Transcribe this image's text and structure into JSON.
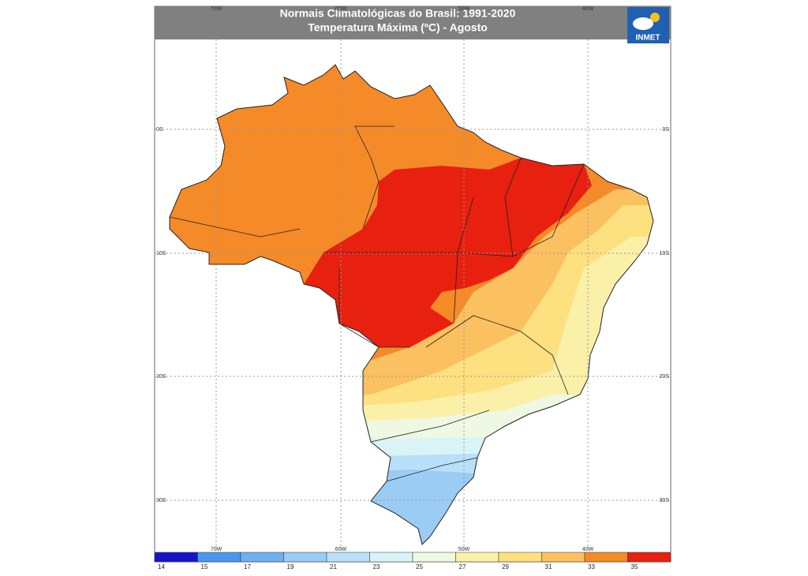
{
  "header": {
    "title": "Normais Climatológicas do Brasil: 1991-2020",
    "subtitle": "Temperatura Máxima (ºC) - Agosto",
    "logo": "INMET"
  },
  "map": {
    "longitude_labels": [
      "70W",
      "60W",
      "50W",
      "40W"
    ],
    "latitude_labels": [
      "0S",
      "10S",
      "20S",
      "30S"
    ]
  },
  "colorbar": {
    "ticks": [
      14,
      15,
      17,
      19,
      21,
      23,
      25,
      27,
      29,
      31,
      33,
      35
    ],
    "colors": [
      "#1414c8",
      "#4a96ee",
      "#6fb0f0",
      "#9accf4",
      "#b9e0f8",
      "#d9f4f6",
      "#eef8e2",
      "#fbf0a8",
      "#fde080",
      "#fbc060",
      "#f58a28",
      "#e82010"
    ]
  }
}
